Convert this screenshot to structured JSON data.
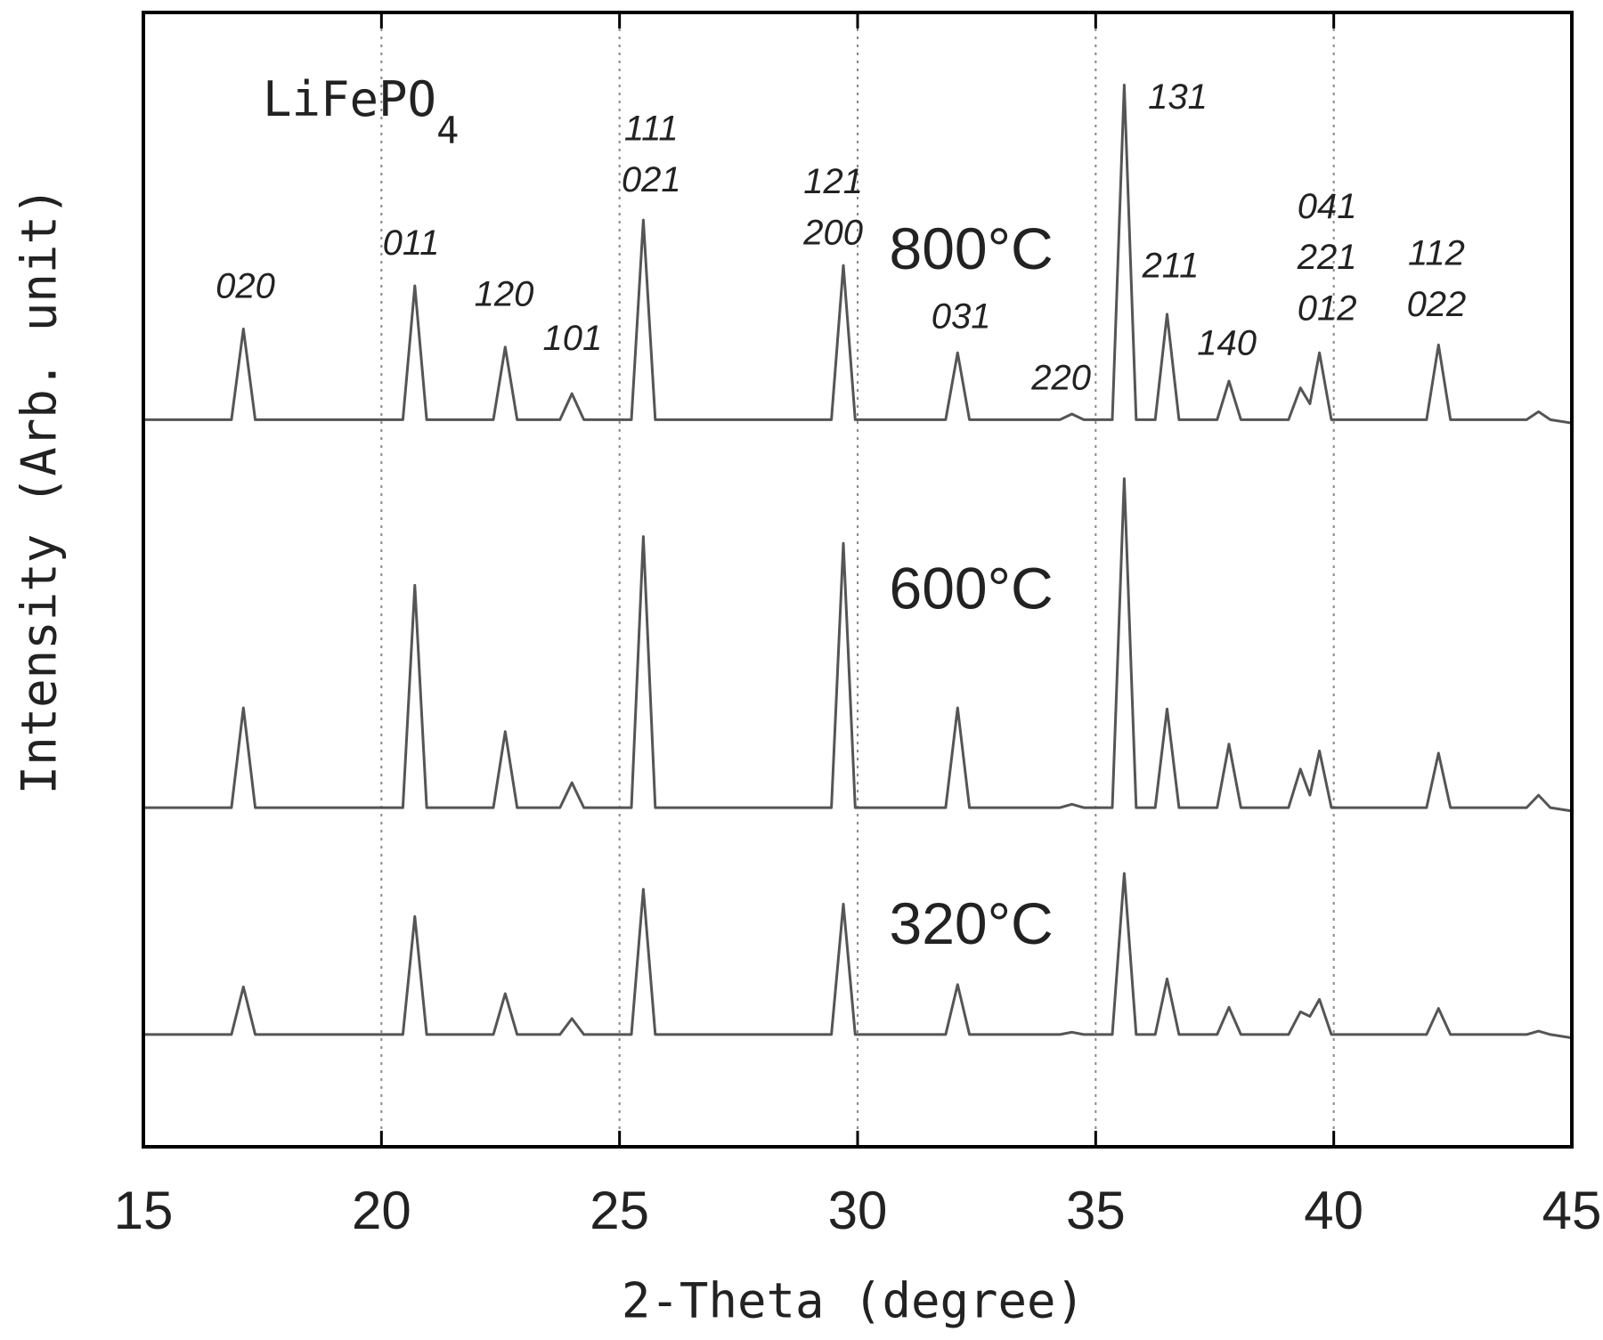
{
  "chart_data": {
    "type": "line",
    "title": "LiFePO",
    "title_subscript": "4",
    "x_label": "2-Theta (degree)",
    "y_label": "Intensity (Arb. unit)",
    "xlim": [
      15,
      45
    ],
    "xticks": [
      15,
      20,
      25,
      30,
      35,
      40,
      45
    ],
    "ylim": [
      0,
      100
    ],
    "grid": true,
    "x": [
      15,
      16.85,
      17.1,
      17.35,
      20.45,
      20.7,
      20.95,
      22.35,
      22.6,
      22.85,
      23.75,
      24.0,
      24.25,
      25.25,
      25.5,
      25.75,
      29.45,
      29.7,
      29.95,
      31.85,
      32.1,
      32.35,
      34.25,
      34.5,
      34.75,
      35.35,
      35.6,
      35.85,
      36.25,
      36.5,
      36.75,
      37.55,
      37.8,
      38.05,
      39.05,
      39.3,
      39.5,
      39.7,
      39.95,
      41.95,
      42.2,
      42.45,
      44.05,
      44.3,
      44.55,
      45
    ],
    "series": [
      {
        "name": "800°C",
        "color": "#555555",
        "values": [
          64.1,
          64.1,
          72.1,
          64.1,
          64.1,
          75.9,
          64.1,
          64.1,
          70.5,
          64.1,
          64.1,
          66.4,
          64.1,
          64.1,
          81.7,
          64.1,
          64.1,
          77.7,
          64.1,
          64.1,
          70.0,
          64.1,
          64.1,
          64.6,
          64.1,
          64.1,
          93.6,
          64.1,
          64.1,
          73.4,
          64.1,
          64.1,
          67.5,
          64.1,
          64.1,
          66.9,
          65.5,
          70.0,
          64.1,
          64.1,
          70.7,
          64.1,
          64.1,
          64.8,
          64.1,
          63.8
        ]
      },
      {
        "name": "600°C",
        "color": "#555555",
        "values": [
          29.9,
          29.9,
          38.7,
          29.9,
          29.9,
          49.5,
          29.9,
          29.9,
          36.6,
          29.9,
          29.9,
          32.1,
          29.9,
          29.9,
          53.8,
          29.9,
          29.9,
          53.2,
          29.9,
          29.9,
          38.7,
          29.9,
          29.9,
          30.2,
          29.9,
          29.9,
          58.9,
          29.9,
          29.9,
          38.6,
          29.9,
          29.9,
          35.5,
          29.9,
          29.9,
          33.3,
          31.0,
          34.9,
          29.9,
          29.9,
          34.7,
          29.9,
          29.9,
          31.0,
          29.9,
          29.6
        ]
      },
      {
        "name": "320°C",
        "color": "#555555",
        "values": [
          9.9,
          9.9,
          14.1,
          9.9,
          9.9,
          20.3,
          9.9,
          9.9,
          13.5,
          9.9,
          9.9,
          11.3,
          9.9,
          9.9,
          22.7,
          9.9,
          9.9,
          21.4,
          9.9,
          9.9,
          14.3,
          9.9,
          9.9,
          10.1,
          9.9,
          9.9,
          24.1,
          9.9,
          9.9,
          14.8,
          9.9,
          9.9,
          12.3,
          9.9,
          9.9,
          11.9,
          11.5,
          13.0,
          9.9,
          9.9,
          12.2,
          9.9,
          9.9,
          10.2,
          9.9,
          9.6
        ]
      }
    ],
    "peak_labels": [
      [
        "020"
      ],
      [
        "011"
      ],
      [
        "120"
      ],
      [
        "101"
      ],
      [
        "111",
        "021"
      ],
      [
        "121",
        "200"
      ],
      [
        "031"
      ],
      [
        "220"
      ],
      [
        "131"
      ],
      [
        "211"
      ],
      [
        "140"
      ],
      [
        "041",
        "221",
        "012"
      ],
      [
        "112",
        "022"
      ]
    ]
  }
}
